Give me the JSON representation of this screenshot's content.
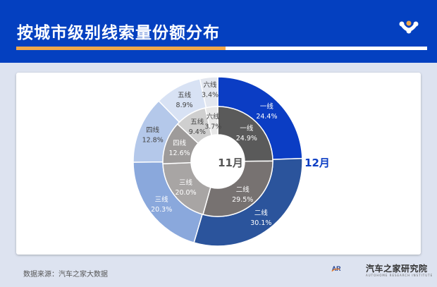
{
  "header": {
    "title": "按城市级别线索量份额分布"
  },
  "colors": {
    "header_bg": "#0440c0",
    "accent_orange": "#f0a84a",
    "outer_ring": [
      "#0b3dc4",
      "#2b549c",
      "#8aa8dc",
      "#b4c8ea",
      "#d8e2f4",
      "#e3e7ef"
    ],
    "inner_ring": [
      "#5a5a5a",
      "#777271",
      "#a8a5a4",
      "#9e9b9a",
      "#cfcfcf",
      "#e8e8e8"
    ]
  },
  "chart_data": {
    "type": "pie",
    "subtype": "nested-donut",
    "title": "按城市级别线索量份额分布",
    "categories": [
      "一线",
      "二线",
      "三线",
      "四线",
      "五线",
      "六线"
    ],
    "series": [
      {
        "name": "12月",
        "ring": "outer",
        "values": [
          24.4,
          30.1,
          20.3,
          12.8,
          8.9,
          3.4
        ]
      },
      {
        "name": "11月",
        "ring": "inner",
        "values": [
          24.9,
          29.5,
          20.0,
          12.6,
          9.4,
          3.7
        ]
      }
    ],
    "labels": {
      "outer_series": "12月",
      "inner_series": "11月"
    },
    "unit": "%"
  },
  "footer": {
    "source": "数据来源：汽车之家大数据",
    "brand_name": "汽车之家研究院",
    "brand_sub": "AUTOHOME RESEARCH INSTITUTE",
    "brand_logo_text": "AR"
  }
}
